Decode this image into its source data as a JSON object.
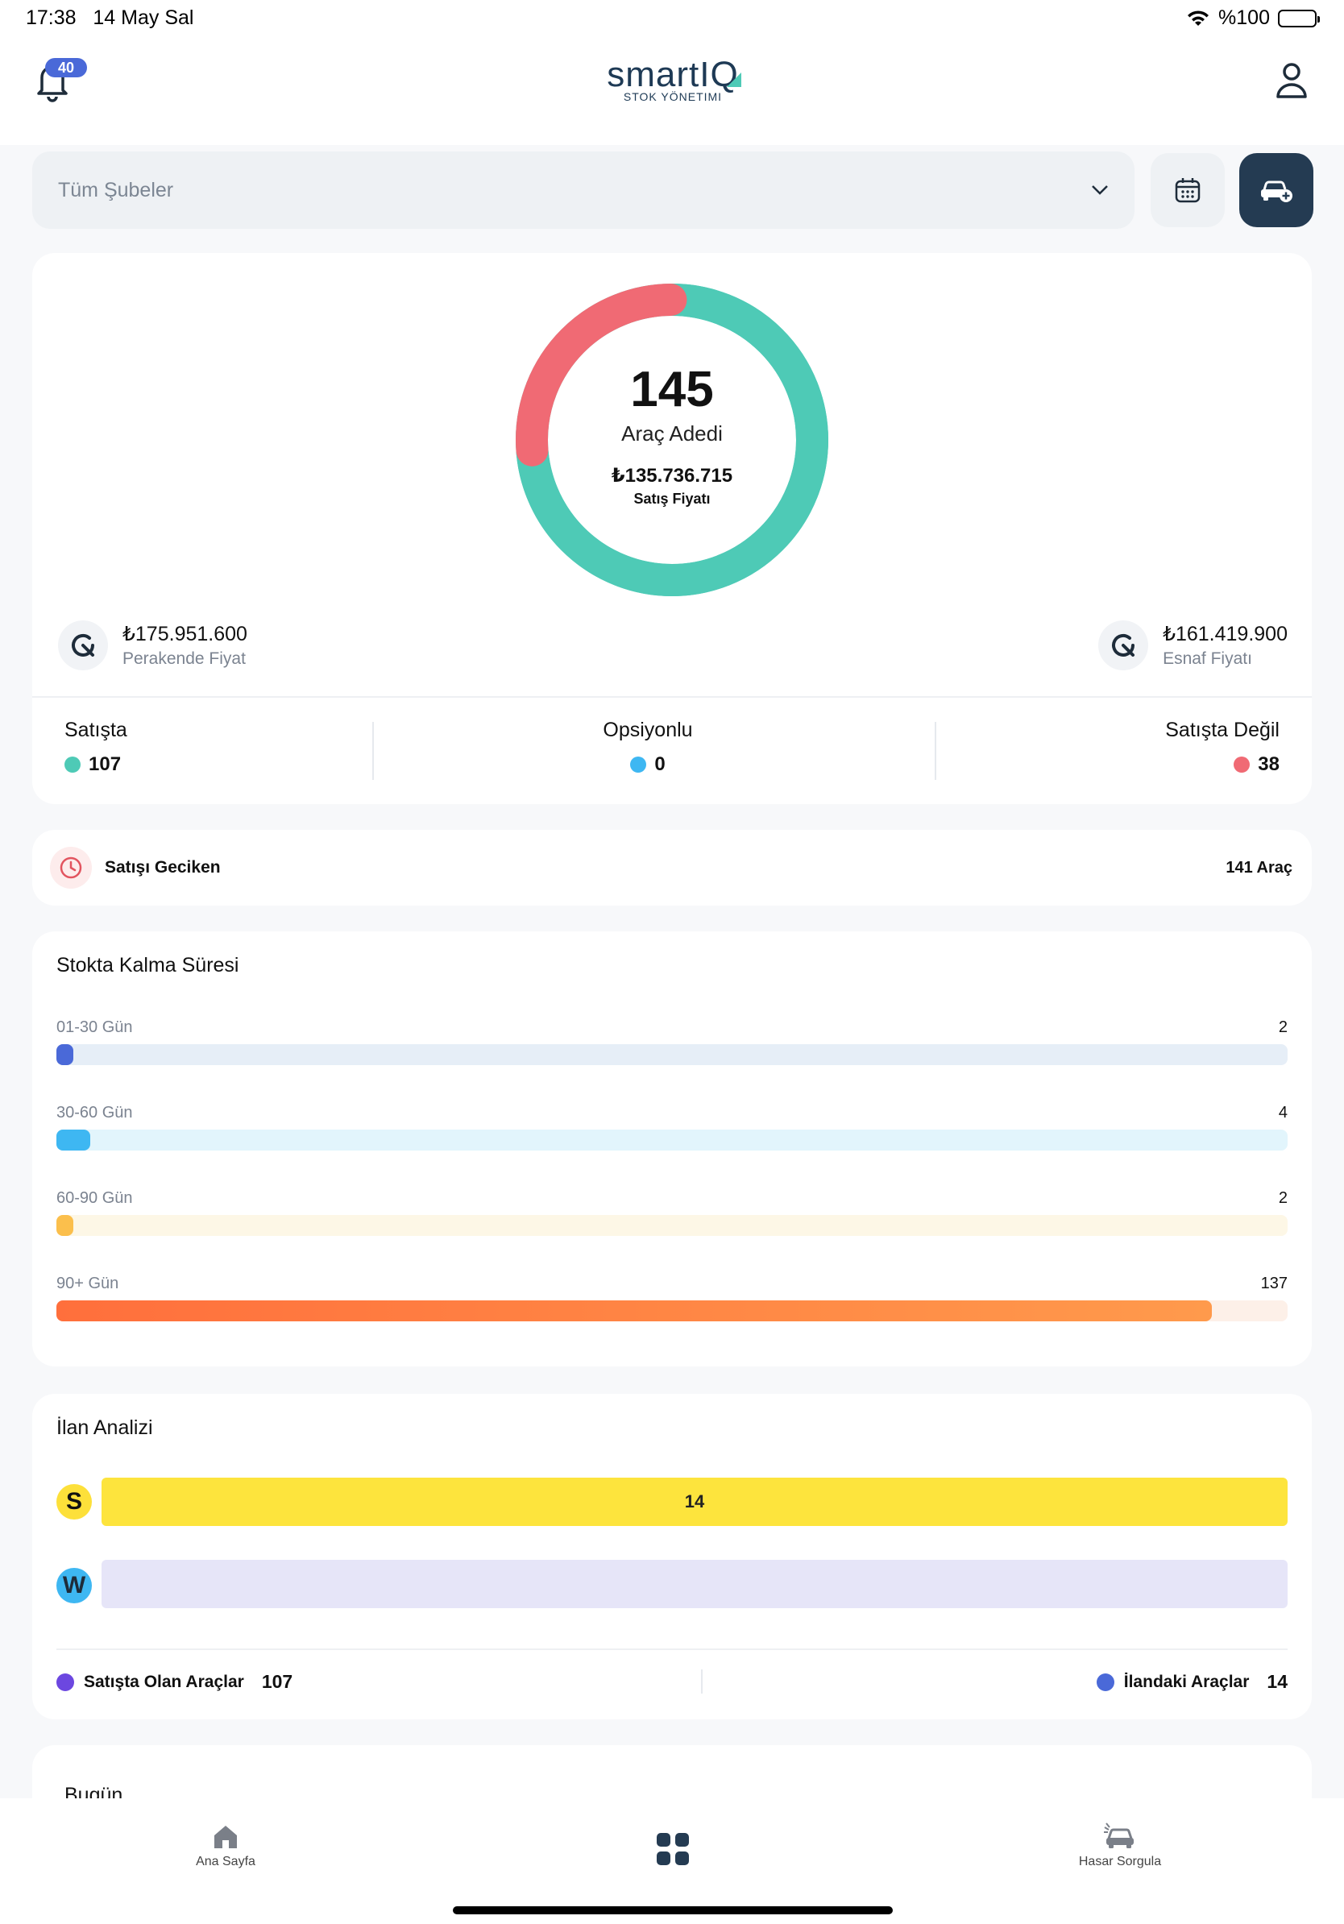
{
  "status": {
    "time": "17:38",
    "date": "14 May Sal",
    "battery": "%100"
  },
  "header": {
    "notification_count": "40",
    "logo_text": "smartIQ",
    "logo_sub": "STOK YÖNETIMI"
  },
  "filter": {
    "branch_placeholder": "Tüm Şubeler"
  },
  "summary": {
    "vehicle_count": "145",
    "vehicle_count_label": "Araç Adedi",
    "sale_price": "₺135.736.715",
    "sale_price_label": "Satış Fiyatı",
    "retail_price": "₺175.951.600",
    "retail_price_label": "Perakende Fiyat",
    "dealer_price": "₺161.419.900",
    "dealer_price_label": "Esnaf Fiyatı",
    "donut": {
      "segments": [
        {
          "name": "Satışta",
          "value": 107,
          "color": "#4ECAB6"
        },
        {
          "name": "Satışta Değil",
          "value": 38,
          "color": "#F06A74"
        }
      ]
    },
    "on_sale_label": "Satışta",
    "on_sale_value": "107",
    "optional_label": "Opsiyonlu",
    "optional_value": "0",
    "not_on_sale_label": "Satışta Değil",
    "not_on_sale_value": "38"
  },
  "delayed": {
    "label": "Satışı Geciken",
    "count": "141 Araç"
  },
  "stock_duration": {
    "title": "Stokta Kalma Süresi",
    "rows": [
      {
        "label": "01-30 Gün",
        "count": "2",
        "fraction": 0.0146,
        "fill": "#4A69D8",
        "track": "#E6EEF7"
      },
      {
        "label": "30-60 Gün",
        "count": "4",
        "fraction": 0.0292,
        "fill": "#3EB7F2",
        "track": "#E2F5FC"
      },
      {
        "label": "60-90 Gün",
        "count": "2",
        "fraction": 0.0146,
        "fill": "#FBBF4C",
        "track": "#FDF7E6"
      },
      {
        "label": "90+ Gün",
        "count": "137",
        "fraction": 1.0,
        "fill": "#FF7A45",
        "track": "#FDF0E8"
      }
    ]
  },
  "listing": {
    "title": "İlan Analizi",
    "sahibinden_letter": "S",
    "sahibinden_value": "14",
    "w_letter": "W",
    "w_value": "",
    "on_sale_label": "Satışta Olan Araçlar",
    "on_sale_value": "107",
    "listed_label": "İlandaki Araçlar",
    "listed_value": "14"
  },
  "today": {
    "title": "Bugün"
  },
  "tabs": {
    "home": "Ana Sayfa",
    "damage": "Hasar Sorgula"
  }
}
